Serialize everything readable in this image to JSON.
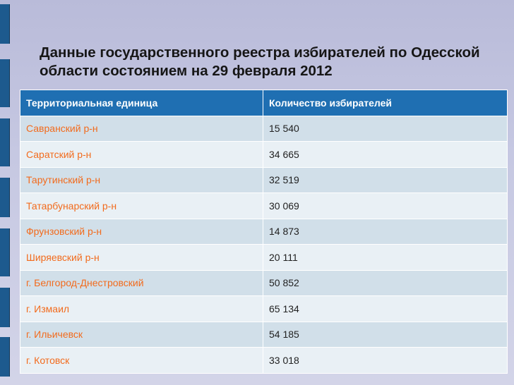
{
  "title": "Данные государственного реестра избирателей по Одесской области состоянием на 29 февраля 2012",
  "table": {
    "headers": [
      "Территориальная единица",
      "Количество избирателей"
    ],
    "rows": [
      {
        "unit": "Савранский р-н",
        "voters": "15 540"
      },
      {
        "unit": "Саратский р-н",
        "voters": "34 665"
      },
      {
        "unit": "Тарутинский р-н",
        "voters": "32 519"
      },
      {
        "unit": "Татарбунарский р-н",
        "voters": "30 069"
      },
      {
        "unit": "Фрунзовский р-н",
        "voters": "14 873"
      },
      {
        "unit": "Ширяевский р-н",
        "voters": "20 111"
      },
      {
        "unit": "г. Белгород-Днестровский",
        "voters": "50 852"
      },
      {
        "unit": "г. Измаил",
        "voters": "65 134"
      },
      {
        "unit": "г. Ильичевск",
        "voters": "54 185"
      },
      {
        "unit": "г. Котовск",
        "voters": "33 018"
      }
    ]
  },
  "colors": {
    "header_bg": "#1f6fb2",
    "row_odd": "#d1dfe9",
    "row_even": "#e9f0f5",
    "unit_text": "#f26b1d",
    "left_bar": "#1d5a8e"
  }
}
